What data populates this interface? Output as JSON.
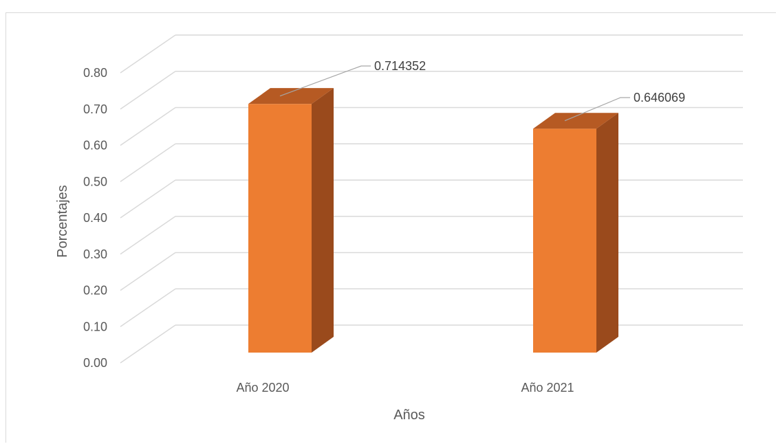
{
  "chart_data": {
    "type": "bar",
    "categories": [
      "Año 2020",
      "Año 2021"
    ],
    "values": [
      0.714352,
      0.646069
    ],
    "data_labels": [
      "0.714352",
      "0.646069"
    ],
    "xlabel": "Años",
    "ylabel": "Porcentajes",
    "ylim": [
      0,
      0.8
    ],
    "yticks": [
      "0.00",
      "0.10",
      "0.20",
      "0.30",
      "0.40",
      "0.50",
      "0.60",
      "0.70",
      "0.80"
    ],
    "grid": true,
    "style": "3d-column",
    "colors": {
      "bar_front": "#ED7D31",
      "bar_top": "#B65A23",
      "bar_side": "#9A4A1C",
      "grid": "#d9d9d9"
    }
  }
}
